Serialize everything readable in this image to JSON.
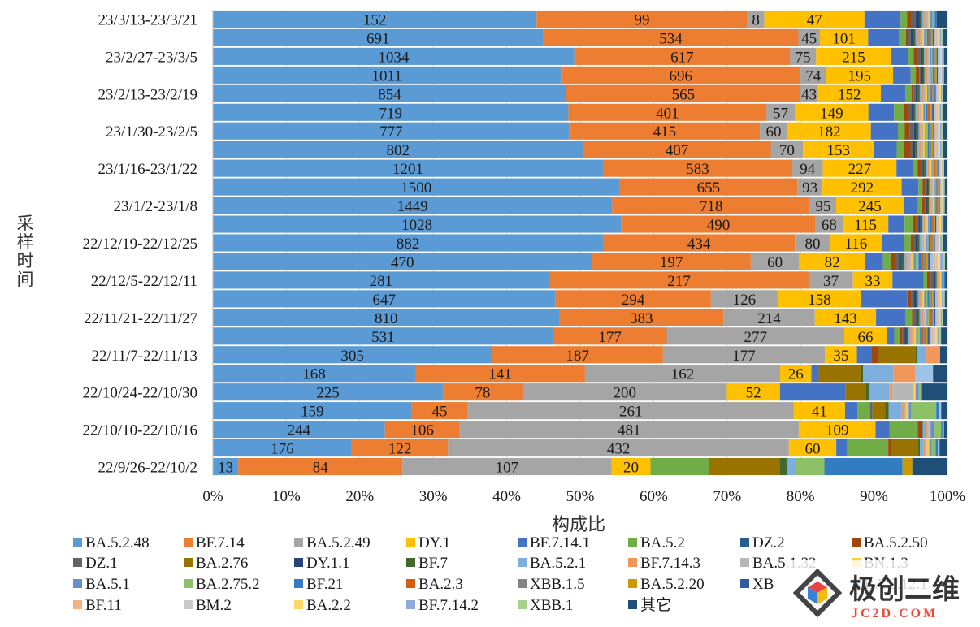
{
  "chart_data": {
    "type": "bar",
    "orientation": "horizontal",
    "stacked": "percent",
    "xlabel": "构成比",
    "ylabel": "采样时间",
    "xlim": [
      0,
      1
    ],
    "x_ticks": [
      "0%",
      "10%",
      "20%",
      "30%",
      "40%",
      "50%",
      "60%",
      "70%",
      "80%",
      "90%",
      "100%"
    ],
    "grid": true,
    "legend_position": "bottom",
    "legend_columns": 8,
    "categories": [
      "23/3/13-23/3/21",
      "",
      "23/2/27-23/3/5",
      "",
      "23/2/13-23/2/19",
      "",
      "23/1/30-23/2/5",
      "",
      "23/1/16-23/1/22",
      "",
      "23/1/2-23/1/8",
      "",
      "22/12/19-22/12/25",
      "",
      "22/12/5-22/12/11",
      "",
      "22/11/21-22/11/27",
      "",
      "22/11/7-22/11/13",
      "",
      "22/10/24-22/10/30",
      "",
      "22/10/10-22/10/16",
      "",
      "22/9/26-22/10/2"
    ],
    "series": [
      {
        "name": "BA.5.2.48",
        "color": "#5B9BD5",
        "values": [
          152,
          691,
          1034,
          1011,
          854,
          719,
          777,
          802,
          1201,
          1500,
          1449,
          1028,
          882,
          470,
          281,
          647,
          810,
          531,
          305,
          168,
          225,
          159,
          244,
          176,
          13
        ]
      },
      {
        "name": "BF.7.14",
        "color": "#ED7D31",
        "values": [
          99,
          534,
          617,
          696,
          565,
          401,
          415,
          407,
          583,
          655,
          718,
          490,
          434,
          197,
          217,
          294,
          383,
          177,
          187,
          141,
          78,
          45,
          106,
          122,
          84
        ]
      },
      {
        "name": "BA.5.2.49",
        "color": "#A5A5A5",
        "values": [
          8,
          45,
          75,
          74,
          43,
          57,
          60,
          70,
          94,
          93,
          95,
          68,
          80,
          60,
          37,
          126,
          214,
          277,
          177,
          162,
          200,
          261,
          481,
          432,
          107
        ]
      },
      {
        "name": "DY.1",
        "color": "#FFC000",
        "values": [
          47,
          101,
          215,
          195,
          152,
          149,
          182,
          153,
          227,
          292,
          245,
          115,
          116,
          82,
          33,
          158,
          143,
          66,
          35,
          26,
          52,
          41,
          109,
          60,
          20
        ]
      },
      {
        "name": "BF.7.14.1",
        "color": "#4472C4",
        "values": [
          17,
          64,
          49,
          51,
          59,
          52,
          59,
          50,
          50,
          62,
          52,
          41,
          51,
          22,
          26,
          87,
          69,
          12,
          16,
          6,
          64,
          10,
          20,
          14,
          0
        ]
      },
      {
        "name": "BA.5.2",
        "color": "#70AD47",
        "values": [
          3,
          15,
          15,
          15,
          15,
          20,
          15,
          15,
          15,
          15,
          15,
          20,
          15,
          10,
          3,
          2,
          15,
          8,
          0,
          0,
          0,
          10,
          40,
          52,
          30
        ]
      },
      {
        "name": "DZ.2",
        "color": "#255E91",
        "values": [
          0,
          0,
          0,
          0,
          0,
          0,
          0,
          0,
          0,
          0,
          0,
          0,
          0,
          0,
          0,
          0,
          0,
          0,
          0,
          0,
          0,
          0,
          0,
          0,
          0
        ]
      },
      {
        "name": "BA.5.2.50",
        "color": "#9E480E",
        "values": [
          2,
          5,
          10,
          10,
          5,
          10,
          10,
          15,
          10,
          10,
          10,
          10,
          5,
          5,
          3,
          5,
          5,
          5,
          8,
          0,
          0,
          0,
          5,
          3,
          0
        ]
      },
      {
        "name": "DZ.1",
        "color": "#636363",
        "values": [
          2,
          5,
          10,
          5,
          5,
          5,
          10,
          5,
          5,
          5,
          5,
          5,
          5,
          5,
          2,
          5,
          5,
          3,
          0,
          0,
          0,
          2,
          0,
          0,
          0
        ]
      },
      {
        "name": "BA.2.76",
        "color": "#997300",
        "values": [
          0,
          0,
          0,
          0,
          0,
          0,
          0,
          0,
          0,
          0,
          0,
          0,
          0,
          0,
          0,
          0,
          0,
          0,
          40,
          35,
          20,
          10,
          0,
          35,
          36
        ]
      },
      {
        "name": "DY.1.1",
        "color": "#264478",
        "values": [
          2,
          5,
          5,
          5,
          5,
          5,
          5,
          5,
          5,
          5,
          5,
          5,
          5,
          3,
          2,
          5,
          5,
          3,
          0,
          0,
          0,
          0,
          0,
          0,
          0
        ]
      },
      {
        "name": "BF.7",
        "color": "#43682B",
        "values": [
          1,
          5,
          5,
          5,
          5,
          3,
          5,
          5,
          5,
          5,
          5,
          5,
          5,
          3,
          1,
          3,
          3,
          3,
          2,
          2,
          3,
          3,
          2,
          2,
          4
        ]
      },
      {
        "name": "BA.5.2.1",
        "color": "#7CAFDD",
        "values": [
          1,
          5,
          5,
          5,
          5,
          3,
          3,
          3,
          5,
          5,
          5,
          3,
          3,
          3,
          1,
          3,
          5,
          3,
          10,
          25,
          20,
          10,
          5,
          5,
          4
        ]
      },
      {
        "name": "BF.7.14.3",
        "color": "#F1975A",
        "values": [
          1,
          5,
          5,
          5,
          5,
          5,
          3,
          5,
          5,
          5,
          5,
          3,
          3,
          3,
          1,
          3,
          3,
          3,
          15,
          18,
          3,
          2,
          2,
          2,
          0
        ]
      },
      {
        "name": "BA.5.1.32",
        "color": "#B7B7B7",
        "values": [
          1,
          5,
          5,
          5,
          5,
          5,
          5,
          5,
          5,
          5,
          5,
          5,
          5,
          3,
          1,
          3,
          5,
          3,
          0,
          0,
          20,
          2,
          2,
          2,
          0
        ]
      },
      {
        "name": "BN.1.3",
        "color": "#FFCD33",
        "values": [
          1,
          3,
          3,
          3,
          3,
          3,
          3,
          3,
          3,
          3,
          3,
          3,
          3,
          3,
          1,
          3,
          3,
          3,
          0,
          0,
          3,
          2,
          2,
          3,
          0
        ]
      },
      {
        "name": "BA.5.1",
        "color": "#698ED0",
        "values": [
          1,
          3,
          3,
          3,
          3,
          3,
          3,
          3,
          3,
          3,
          3,
          3,
          3,
          3,
          1,
          3,
          3,
          3,
          0,
          0,
          3,
          2,
          5,
          3,
          0
        ]
      },
      {
        "name": "BA.2.75.2",
        "color": "#8CC168",
        "values": [
          1,
          3,
          3,
          3,
          3,
          3,
          3,
          3,
          3,
          3,
          3,
          3,
          3,
          3,
          1,
          3,
          3,
          3,
          0,
          0,
          3,
          20,
          10,
          5,
          15
        ]
      },
      {
        "name": "BF.21",
        "color": "#327DC2",
        "values": [
          1,
          3,
          3,
          3,
          3,
          3,
          3,
          3,
          3,
          3,
          3,
          3,
          3,
          3,
          1,
          3,
          3,
          3,
          0,
          0,
          0,
          2,
          2,
          3,
          40
        ]
      },
      {
        "name": "BA.2.3",
        "color": "#D26012",
        "values": [
          0,
          3,
          3,
          3,
          3,
          3,
          3,
          3,
          3,
          3,
          3,
          3,
          3,
          3,
          0,
          3,
          3,
          3,
          0,
          0,
          0,
          0,
          0,
          0,
          0
        ]
      },
      {
        "name": "XBB.1.5",
        "color": "#848484",
        "values": [
          0,
          3,
          3,
          3,
          3,
          3,
          3,
          3,
          3,
          3,
          3,
          3,
          3,
          3,
          0,
          3,
          3,
          3,
          0,
          0,
          0,
          0,
          0,
          0,
          0
        ]
      },
      {
        "name": "BA.5.2.20",
        "color": "#CC9A00",
        "values": [
          0,
          3,
          3,
          3,
          3,
          3,
          3,
          3,
          3,
          3,
          3,
          3,
          3,
          3,
          0,
          3,
          3,
          3,
          0,
          0,
          0,
          0,
          0,
          0,
          5
        ]
      },
      {
        "name": "XB",
        "color": "#335AA1",
        "values": [
          0,
          3,
          3,
          3,
          3,
          3,
          3,
          3,
          3,
          3,
          3,
          3,
          3,
          3,
          0,
          3,
          3,
          3,
          0,
          0,
          0,
          0,
          0,
          0,
          0
        ]
      },
      {
        "name": "BA.2.12.1",
        "color": "#9DC3E6",
        "values": [
          0,
          3,
          3,
          3,
          3,
          3,
          3,
          3,
          3,
          3,
          3,
          3,
          3,
          3,
          0,
          3,
          3,
          3,
          0,
          15,
          0,
          2,
          2,
          2,
          0
        ]
      },
      {
        "name": "BF.11",
        "color": "#F4B183",
        "values": [
          0,
          3,
          3,
          3,
          3,
          3,
          3,
          3,
          3,
          3,
          3,
          3,
          3,
          3,
          0,
          3,
          3,
          3,
          0,
          0,
          0,
          0,
          0,
          0,
          0
        ]
      },
      {
        "name": "BM.2",
        "color": "#C9C9C9",
        "values": [
          0,
          3,
          3,
          3,
          3,
          3,
          3,
          3,
          3,
          3,
          3,
          3,
          3,
          3,
          0,
          3,
          3,
          3,
          0,
          0,
          0,
          0,
          0,
          0,
          0
        ]
      },
      {
        "name": "BA.2.2",
        "color": "#FFD966",
        "values": [
          0,
          3,
          3,
          3,
          3,
          3,
          3,
          3,
          3,
          3,
          3,
          3,
          3,
          3,
          0,
          3,
          3,
          3,
          0,
          0,
          0,
          0,
          0,
          0,
          0
        ]
      },
      {
        "name": "BF.7.14.2",
        "color": "#8FAADC",
        "values": [
          0,
          3,
          3,
          3,
          3,
          3,
          3,
          3,
          3,
          3,
          3,
          3,
          3,
          3,
          0,
          3,
          3,
          3,
          0,
          0,
          0,
          0,
          0,
          0,
          0
        ]
      },
      {
        "name": "XBB.1",
        "color": "#A9D18E",
        "values": [
          0,
          3,
          3,
          3,
          3,
          3,
          3,
          3,
          3,
          3,
          3,
          3,
          3,
          3,
          0,
          3,
          3,
          3,
          0,
          0,
          0,
          0,
          0,
          0,
          0
        ]
      },
      {
        "name": "其它",
        "color": "#1F4E79",
        "values": [
          5,
          10,
          10,
          10,
          10,
          10,
          10,
          10,
          10,
          10,
          10,
          10,
          10,
          3,
          2,
          5,
          10,
          10,
          8,
          12,
          25,
          5,
          5,
          10,
          18
        ]
      }
    ],
    "legend_visible_labels": [
      "BA.5.2.48",
      "BF.7.14",
      "BA.5.2.49",
      "DY.1",
      "BF.7.14.1",
      "BA.5.2",
      "DZ.2",
      "BA.5.2.50",
      "DZ.1",
      "BA.2.76",
      "DY.1.1",
      "BF.7",
      "BA.5.2.1",
      "BF.7.14.3",
      "BA.5.1.32",
      "BN.1.3",
      "BA.5.1",
      "BA.2.75.2",
      "BF.21",
      "BA.2.3",
      "XBB.1.5",
      "BA.5.2.20",
      "XB",
      "BA.2.12.1",
      "BF.11",
      "BM.2",
      "BA.2.2",
      "BF.7.14.2",
      "XBB.1",
      "其它"
    ],
    "data_labels_series": 4
  },
  "watermark": {
    "text": "极创二维",
    "subtext": "JC2D.COM"
  }
}
